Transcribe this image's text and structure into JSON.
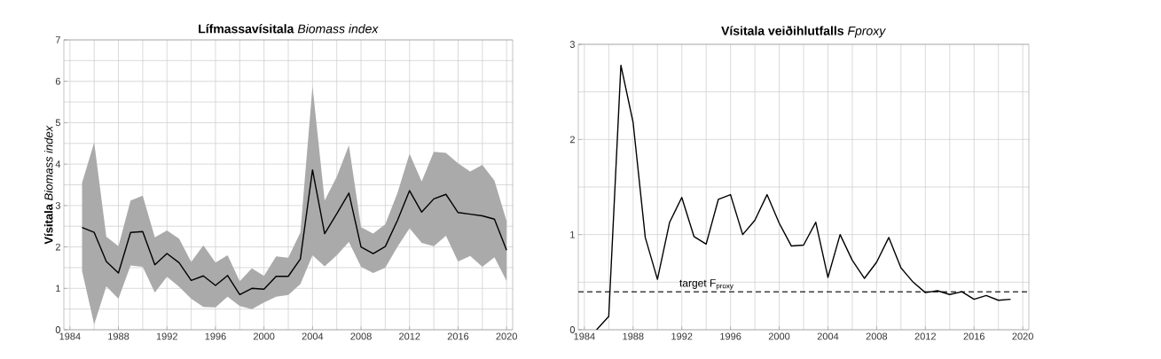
{
  "chart_data": [
    {
      "type": "line",
      "title": "**Lífmassavísitala** *Biomass index*",
      "ylabel": "**Vísitala** *Biomass index*",
      "x": [
        1985,
        1986,
        1987,
        1988,
        1989,
        1990,
        1991,
        1992,
        1993,
        1994,
        1995,
        1996,
        1997,
        1998,
        1999,
        2000,
        2001,
        2002,
        2003,
        2004,
        2005,
        2006,
        2007,
        2008,
        2009,
        2010,
        2011,
        2012,
        2013,
        2014,
        2015,
        2016,
        2017,
        2018,
        2019,
        2020
      ],
      "series": [
        {
          "color": "#000000",
          "values": [
            2.47,
            2.35,
            1.65,
            1.37,
            2.35,
            2.37,
            1.57,
            1.84,
            1.62,
            1.19,
            1.3,
            1.07,
            1.31,
            0.85,
            1.0,
            0.98,
            1.29,
            1.29,
            1.71,
            3.86,
            2.32,
            2.8,
            3.3,
            2.0,
            1.84,
            2.01,
            2.64,
            3.36,
            2.84,
            3.16,
            3.27,
            2.83,
            2.79,
            2.75,
            2.67,
            1.92
          ],
          "upper": [
            3.55,
            4.52,
            2.25,
            2.02,
            3.12,
            3.24,
            2.23,
            2.4,
            2.2,
            1.64,
            2.04,
            1.62,
            1.8,
            1.17,
            1.48,
            1.3,
            1.77,
            1.74,
            2.35,
            5.88,
            3.12,
            3.7,
            4.45,
            2.48,
            2.32,
            2.55,
            3.3,
            4.25,
            3.58,
            4.3,
            4.27,
            4.02,
            3.82,
            3.98,
            3.6,
            2.62
          ],
          "lower": [
            1.42,
            0.13,
            1.05,
            0.75,
            1.55,
            1.52,
            0.9,
            1.28,
            1.04,
            0.75,
            0.55,
            0.54,
            0.8,
            0.57,
            0.5,
            0.66,
            0.8,
            0.84,
            1.1,
            1.8,
            1.53,
            1.8,
            2.12,
            1.52,
            1.37,
            1.5,
            2.0,
            2.45,
            2.1,
            2.02,
            2.27,
            1.65,
            1.78,
            1.52,
            1.75,
            1.18
          ]
        }
      ],
      "xlim": [
        1983.5,
        2020.5
      ],
      "xticks": [
        1984,
        1988,
        1992,
        1996,
        2000,
        2004,
        2008,
        2012,
        2016,
        2020
      ],
      "ylim": [
        0,
        7
      ],
      "yticks": [
        0,
        1,
        2,
        3,
        4,
        5,
        6,
        7
      ],
      "grid": true
    },
    {
      "type": "line",
      "title": "**Vísitala veiðihlutfalls** *Fproxy*",
      "x": [
        1985,
        1986,
        1987,
        1988,
        1989,
        1990,
        1991,
        1992,
        1993,
        1994,
        1995,
        1996,
        1997,
        1998,
        1999,
        2000,
        2001,
        2002,
        2003,
        2004,
        2005,
        2006,
        2007,
        2008,
        2009,
        2010,
        2011,
        2012,
        2013,
        2014,
        2015,
        2016,
        2017,
        2018,
        2019
      ],
      "series": [
        {
          "color": "#000000",
          "values": [
            0.0,
            0.14,
            2.78,
            2.18,
            0.97,
            0.53,
            1.13,
            1.39,
            0.98,
            0.9,
            1.37,
            1.42,
            1.0,
            1.15,
            1.42,
            1.12,
            0.88,
            0.89,
            1.13,
            0.55,
            1.0,
            0.73,
            0.54,
            0.71,
            0.97,
            0.65,
            0.5,
            0.39,
            0.41,
            0.37,
            0.4,
            0.32,
            0.36,
            0.31,
            0.32
          ]
        }
      ],
      "ref_lines": [
        {
          "axis": "y",
          "value": 0.4,
          "label": "target F$_{proxy}$",
          "color": "#000000",
          "line_style": "dashed"
        }
      ],
      "xlim": [
        1983.5,
        2020.5
      ],
      "xticks": [
        1984,
        1988,
        1992,
        1996,
        2000,
        2004,
        2008,
        2012,
        2016,
        2020
      ],
      "ylim": [
        0,
        3
      ],
      "yticks": [
        0,
        1,
        2,
        3
      ],
      "grid": true
    }
  ]
}
